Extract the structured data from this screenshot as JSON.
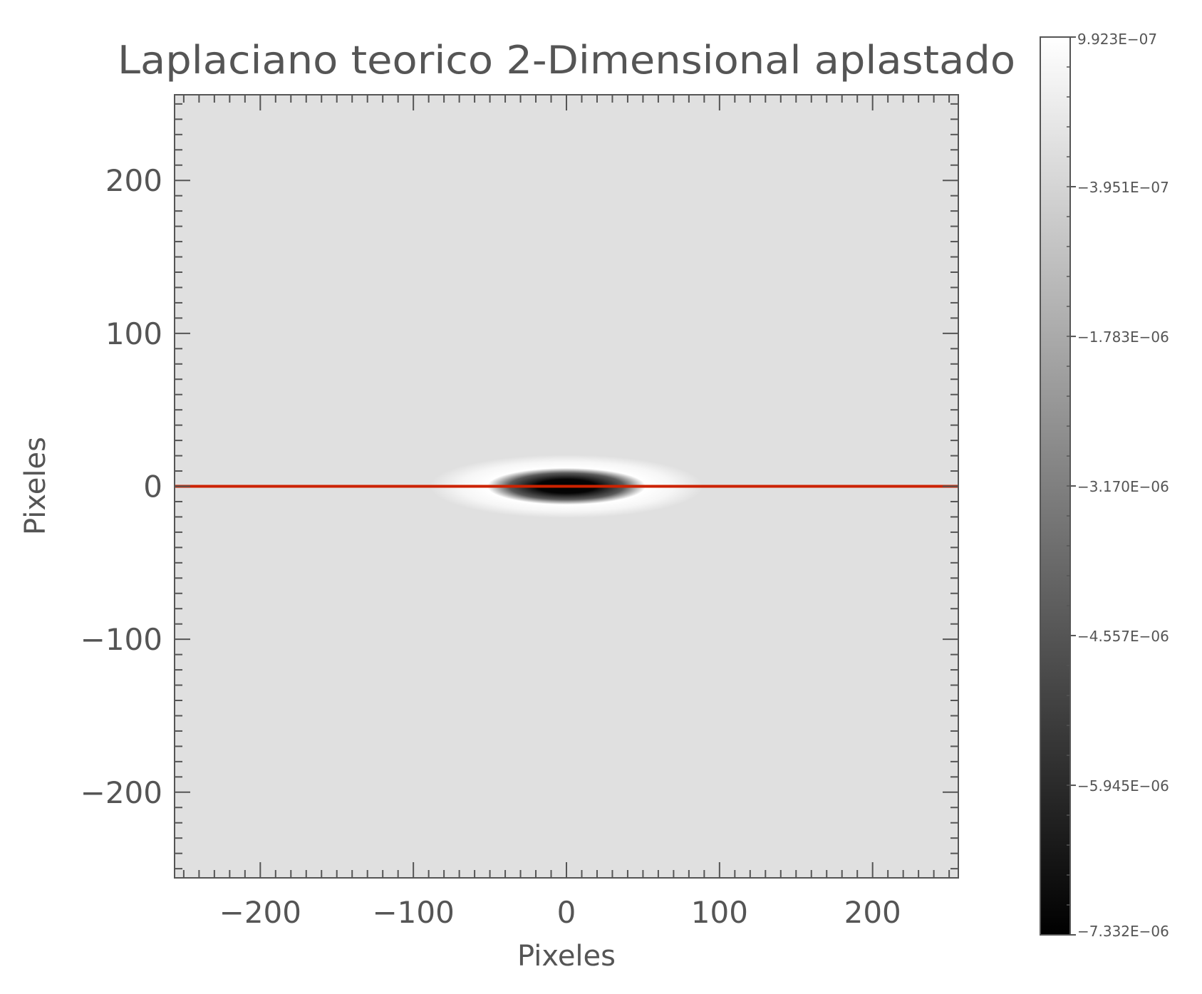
{
  "chart_data": {
    "type": "heatmap",
    "title": "Laplaciano teorico 2-Dimensional aplastado",
    "xlabel": "Pixeles",
    "ylabel": "Pixeles",
    "xlim": [
      -256,
      256
    ],
    "ylim": [
      -256,
      256
    ],
    "x_ticks": [
      -200,
      -100,
      0,
      100,
      200
    ],
    "y_ticks": [
      -200,
      -100,
      0,
      100,
      200
    ],
    "x_tick_labels": [
      "−200",
      "−100",
      "0",
      "100",
      "200"
    ],
    "y_tick_labels": [
      "−200",
      "−100",
      "0",
      "100",
      "200"
    ],
    "colormap": "grayscale",
    "value_range": [
      -7.332e-06,
      9.923e-07
    ],
    "background_value": 0,
    "feature": {
      "shape": "flattened elliptical (Laplacian of Gaussian)",
      "center": [
        0,
        0
      ],
      "negative_core_half_width_x": 35,
      "negative_core_half_height_y": 9,
      "positive_ring_half_width_x": 85,
      "positive_ring_half_height_y": 18
    },
    "colorbar": {
      "ticks": [
        9.923e-07,
        -3.951e-07,
        -1.783e-06,
        -3.17e-06,
        -4.557e-06,
        -5.945e-06,
        -7.332e-06
      ],
      "tick_labels": [
        "9.923E−07",
        "−3.951E−07",
        "−1.783E−06",
        "−3.170E−06",
        "−4.557E−06",
        "−5.945E−06",
        "−7.332E−06"
      ]
    },
    "overlay_line": {
      "y": 0,
      "x_range": [
        -256,
        256
      ],
      "color": "#cc2200"
    },
    "colors": {
      "axis": "#555555",
      "background_field": "#e0e0e0"
    }
  }
}
